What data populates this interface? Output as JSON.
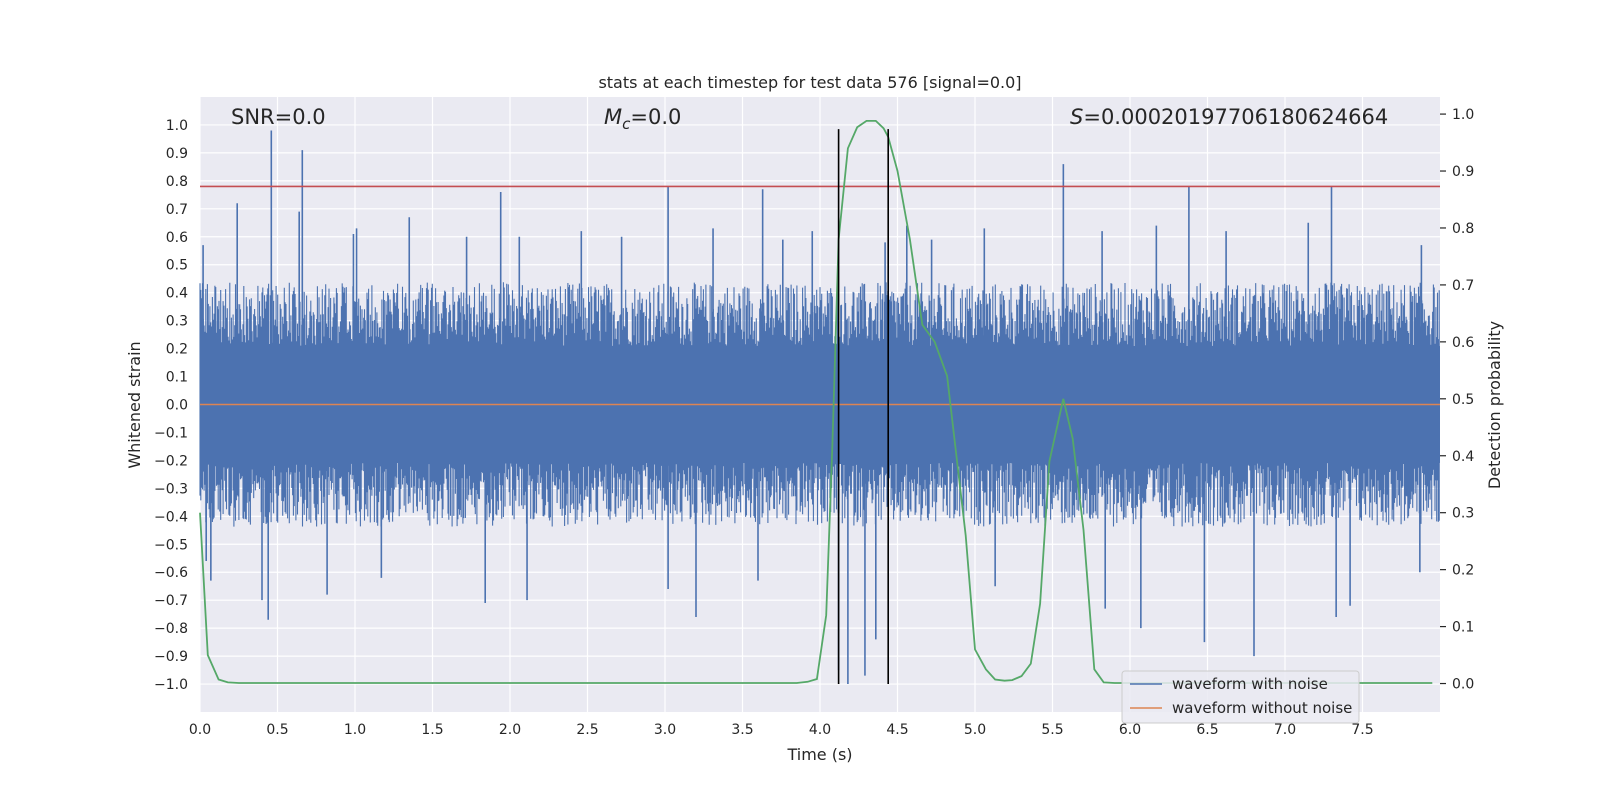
{
  "chart_data": {
    "type": "line",
    "title": "stats at each timestep for test data 576 [signal=0.0]",
    "xlabel": "Time (s)",
    "ylabel_left": "Whitened strain",
    "ylabel_right": "Detection probability",
    "xlim": [
      0.0,
      8.0
    ],
    "ylim_left": [
      -1.1,
      1.1
    ],
    "ylim_right": [
      -0.05,
      1.03
    ],
    "x_ticks": [
      0.0,
      0.5,
      1.0,
      1.5,
      2.0,
      2.5,
      3.0,
      3.5,
      4.0,
      4.5,
      5.0,
      5.5,
      6.0,
      6.5,
      7.0,
      7.5
    ],
    "x_tick_labels": [
      "0.0",
      "0.5",
      "1.0",
      "1.5",
      "2.0",
      "2.5",
      "3.0",
      "3.5",
      "4.0",
      "4.5",
      "5.0",
      "5.5",
      "6.0",
      "6.5",
      "7.0",
      "7.5"
    ],
    "y_left_ticks": [
      1.0,
      0.9,
      0.8,
      0.7,
      0.6,
      0.5,
      0.4,
      0.3,
      0.2,
      0.1,
      0.0,
      -0.1,
      -0.2,
      -0.3,
      -0.4,
      -0.5,
      -0.6,
      -0.7,
      -0.8,
      -0.9,
      -1.0
    ],
    "y_left_tick_labels": [
      "1.0",
      "0.9",
      "0.8",
      "0.7",
      "0.6",
      "0.5",
      "0.4",
      "0.3",
      "0.2",
      "0.1",
      "0.0",
      "−0.1",
      "−0.2",
      "−0.3",
      "−0.4",
      "−0.5",
      "−0.6",
      "−0.7",
      "−0.8",
      "−0.9",
      "−1.0"
    ],
    "y_right_ticks": [
      1.0,
      0.9,
      0.8,
      0.7,
      0.6,
      0.5,
      0.4,
      0.3,
      0.2,
      0.1,
      0.0
    ],
    "y_right_tick_labels": [
      "1.0",
      "0.9",
      "0.8",
      "0.7",
      "0.6",
      "0.5",
      "0.4",
      "0.3",
      "0.2",
      "0.1",
      "0.0"
    ],
    "annotations": {
      "snr": "SNR=0.0",
      "mc_symbol": "M",
      "mc_subscript": "c",
      "mc_value": "=0.0",
      "s_symbol": "S",
      "s_value": "=0.00020197706180624664"
    },
    "threshold_line": {
      "y": 0.78,
      "color": "#c44e52"
    },
    "vertical_lines": [
      4.12,
      4.44
    ],
    "noise_band": {
      "upper": 0.38,
      "lower": -0.38
    },
    "waveform_noise_spikes": [
      {
        "x": 0.02,
        "y": 0.57
      },
      {
        "x": 0.1,
        "y": 0.42
      },
      {
        "x": 0.24,
        "y": 0.72
      },
      {
        "x": 0.46,
        "y": 0.98
      },
      {
        "x": 0.66,
        "y": 0.91
      },
      {
        "x": 0.64,
        "y": 0.69
      },
      {
        "x": 0.99,
        "y": 0.61
      },
      {
        "x": 1.01,
        "y": 0.63
      },
      {
        "x": 1.35,
        "y": 0.67
      },
      {
        "x": 1.72,
        "y": 0.6
      },
      {
        "x": 1.94,
        "y": 0.76
      },
      {
        "x": 2.06,
        "y": 0.6
      },
      {
        "x": 2.46,
        "y": 0.62
      },
      {
        "x": 2.72,
        "y": 0.6
      },
      {
        "x": 3.02,
        "y": 0.78
      },
      {
        "x": 3.31,
        "y": 0.63
      },
      {
        "x": 3.63,
        "y": 0.77
      },
      {
        "x": 3.76,
        "y": 0.59
      },
      {
        "x": 3.95,
        "y": 0.62
      },
      {
        "x": 4.42,
        "y": 0.58
      },
      {
        "x": 4.56,
        "y": 0.64
      },
      {
        "x": 4.72,
        "y": 0.59
      },
      {
        "x": 5.06,
        "y": 0.63
      },
      {
        "x": 5.57,
        "y": 0.86
      },
      {
        "x": 5.82,
        "y": 0.62
      },
      {
        "x": 6.17,
        "y": 0.64
      },
      {
        "x": 6.38,
        "y": 0.78
      },
      {
        "x": 6.62,
        "y": 0.62
      },
      {
        "x": 7.15,
        "y": 0.65
      },
      {
        "x": 7.3,
        "y": 0.78
      },
      {
        "x": 7.88,
        "y": 0.57
      },
      {
        "x": 0.04,
        "y": -0.56
      },
      {
        "x": 0.07,
        "y": -0.63
      },
      {
        "x": 0.4,
        "y": -0.7
      },
      {
        "x": 0.44,
        "y": -0.77
      },
      {
        "x": 0.82,
        "y": -0.68
      },
      {
        "x": 1.17,
        "y": -0.62
      },
      {
        "x": 1.84,
        "y": -0.71
      },
      {
        "x": 2.11,
        "y": -0.7
      },
      {
        "x": 3.02,
        "y": -0.66
      },
      {
        "x": 3.2,
        "y": -0.76
      },
      {
        "x": 3.6,
        "y": -0.63
      },
      {
        "x": 4.12,
        "y": -0.95
      },
      {
        "x": 4.18,
        "y": -1.0
      },
      {
        "x": 4.29,
        "y": -0.97
      },
      {
        "x": 4.36,
        "y": -0.84
      },
      {
        "x": 5.13,
        "y": -0.65
      },
      {
        "x": 5.84,
        "y": -0.73
      },
      {
        "x": 6.07,
        "y": -0.8
      },
      {
        "x": 6.48,
        "y": -0.85
      },
      {
        "x": 6.8,
        "y": -0.9
      },
      {
        "x": 7.33,
        "y": -0.76
      },
      {
        "x": 7.42,
        "y": -0.72
      },
      {
        "x": 7.87,
        "y": -0.6
      }
    ],
    "waveform_without_noise": {
      "y": 0.0
    },
    "detection_probability": {
      "x": [
        0.0,
        0.05,
        0.12,
        0.18,
        0.25,
        0.5,
        1.0,
        2.0,
        3.0,
        3.85,
        3.92,
        3.98,
        4.04,
        4.08,
        4.12,
        4.18,
        4.24,
        4.3,
        4.36,
        4.41,
        4.44,
        4.5,
        4.58,
        4.66,
        4.74,
        4.82,
        4.88,
        4.94,
        5.0,
        5.07,
        5.13,
        5.19,
        5.24,
        5.3,
        5.36,
        5.42,
        5.48,
        5.57,
        5.63,
        5.7,
        5.77,
        5.83,
        5.9,
        6.0,
        7.0,
        7.95
      ],
      "y": [
        0.3,
        0.05,
        0.007,
        0.002,
        0.001,
        0.001,
        0.001,
        0.001,
        0.001,
        0.001,
        0.003,
        0.008,
        0.12,
        0.42,
        0.78,
        0.94,
        0.977,
        0.988,
        0.988,
        0.975,
        0.96,
        0.9,
        0.78,
        0.63,
        0.6,
        0.54,
        0.4,
        0.26,
        0.06,
        0.025,
        0.007,
        0.005,
        0.006,
        0.013,
        0.035,
        0.14,
        0.39,
        0.5,
        0.43,
        0.27,
        0.025,
        0.002,
        0.001,
        0.001,
        0.001,
        0.001
      ]
    },
    "legend": {
      "placement": "lower-right",
      "entries": [
        {
          "label": "waveform with noise",
          "color": "#4c72b0"
        },
        {
          "label": "waveform without noise",
          "color": "#dd8452"
        }
      ]
    },
    "colors": {
      "background": "#eaeaf2",
      "grid": "#ffffff",
      "noise": "#4c72b0",
      "clean": "#dd8452",
      "probability": "#55a868",
      "threshold": "#c44e52",
      "vline": "#000000"
    }
  }
}
